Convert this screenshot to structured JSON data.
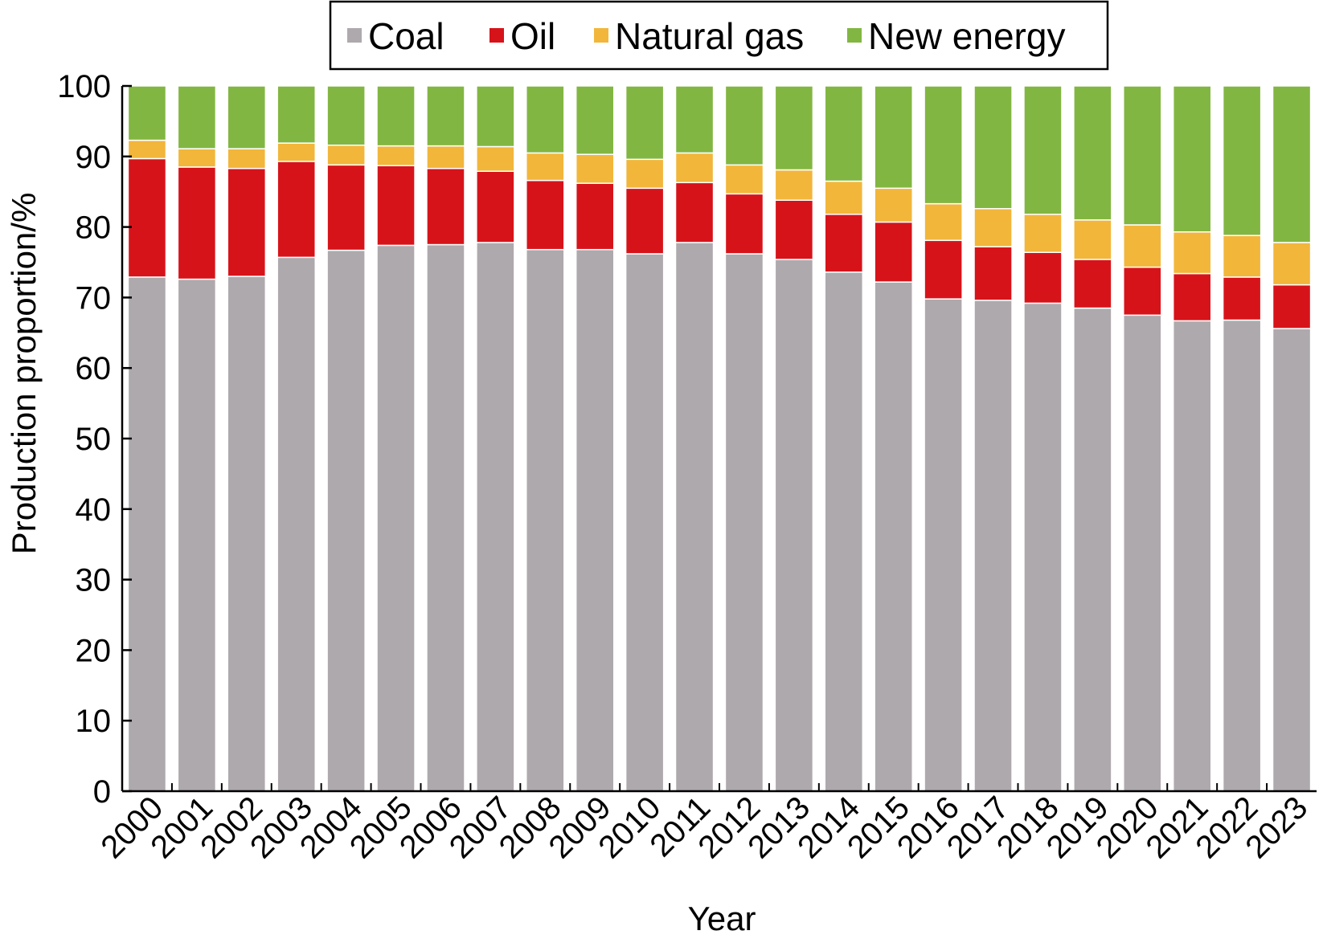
{
  "chart_data": {
    "type": "stacked-bar",
    "title": "",
    "xlabel": "Year",
    "ylabel": "Production proportion/%",
    "ylim": [
      0,
      100
    ],
    "yticks": [
      "0",
      "10",
      "20",
      "30",
      "40",
      "50",
      "60",
      "70",
      "80",
      "90",
      "100"
    ],
    "legend_position": "top",
    "grid": false,
    "categories": [
      "2000",
      "2001",
      "2002",
      "2003",
      "2004",
      "2005",
      "2006",
      "2007",
      "2008",
      "2009",
      "2010",
      "2011",
      "2012",
      "2013",
      "2014",
      "2015",
      "2016",
      "2017",
      "2018",
      "2019",
      "2020",
      "2021",
      "2022",
      "2023"
    ],
    "series": [
      {
        "name": "Coal",
        "color": "#aea9ad",
        "values": [
          72.9,
          72.6,
          73.0,
          75.7,
          76.7,
          77.4,
          77.5,
          77.8,
          76.8,
          76.8,
          76.2,
          77.8,
          76.2,
          75.4,
          73.6,
          72.2,
          69.8,
          69.6,
          69.2,
          68.5,
          67.5,
          66.7,
          66.8,
          65.6
        ]
      },
      {
        "name": "Oil",
        "color": "#d7131a",
        "values": [
          16.8,
          15.9,
          15.3,
          13.6,
          12.1,
          11.3,
          10.8,
          10.1,
          9.8,
          9.4,
          9.3,
          8.5,
          8.5,
          8.4,
          8.2,
          8.5,
          8.3,
          7.6,
          7.2,
          6.9,
          6.8,
          6.7,
          6.1,
          6.2
        ]
      },
      {
        "name": "Natural gas",
        "color": "#f2b63b",
        "values": [
          2.6,
          2.6,
          2.8,
          2.6,
          2.8,
          2.8,
          3.2,
          3.5,
          3.9,
          4.1,
          4.1,
          4.2,
          4.1,
          4.3,
          4.7,
          4.8,
          5.2,
          5.4,
          5.4,
          5.6,
          6.0,
          5.9,
          5.9,
          6.0
        ]
      },
      {
        "name": "New energy",
        "color": "#82b642",
        "values": [
          7.7,
          8.9,
          8.9,
          8.1,
          8.4,
          8.5,
          8.5,
          8.6,
          9.5,
          9.7,
          10.4,
          9.5,
          11.2,
          11.9,
          13.5,
          14.5,
          16.7,
          17.4,
          18.2,
          19.0,
          19.7,
          20.7,
          21.2,
          22.2
        ]
      }
    ]
  }
}
